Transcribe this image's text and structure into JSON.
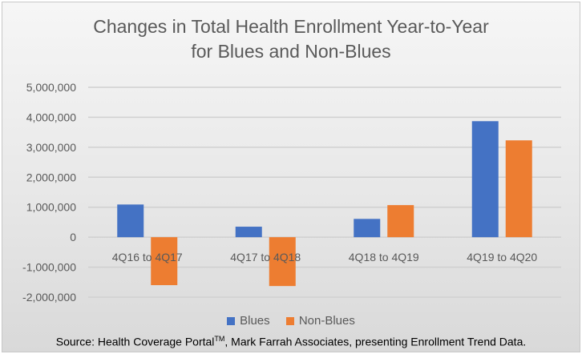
{
  "chart_data": {
    "type": "bar",
    "title": "Changes in Total Health Enrollment Year-to-Year",
    "subtitle": "for Blues and Non-Blues",
    "xlabel": "",
    "ylabel": "",
    "categories": [
      "4Q16 to 4Q17",
      "4Q17 to 4Q18",
      "4Q18 to 4Q19",
      "4Q19 to 4Q20"
    ],
    "series": [
      {
        "name": "Blues",
        "color": "#4472C4",
        "values": [
          1090000,
          350000,
          610000,
          3870000
        ]
      },
      {
        "name": "Non-Blues",
        "color": "#ED7D31",
        "values": [
          -1600000,
          -1630000,
          1070000,
          3230000
        ]
      }
    ],
    "ylim": [
      -2000000,
      5000000
    ],
    "yticks": [
      5000000,
      4000000,
      3000000,
      2000000,
      1000000,
      0,
      -1000000,
      -2000000
    ],
    "ytick_labels": [
      "5,000,000",
      "4,000,000",
      "3,000,000",
      "2,000,000",
      "1,000,000",
      "0",
      "-1,000,000",
      "-2,000,000"
    ],
    "grid": true,
    "legend_position": "bottom"
  },
  "source": {
    "prefix": "Source: Health Coverage Portal",
    "tm": "TM",
    "suffix": ", Mark Farrah Associates, presenting Enrollment Trend Data."
  }
}
